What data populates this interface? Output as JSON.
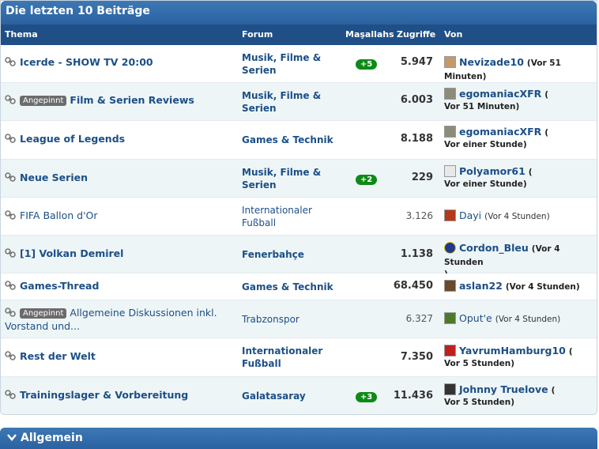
{
  "panel": {
    "title": "Die letzten 10 Beiträge",
    "columns": {
      "thema": "Thema",
      "forum": "Forum",
      "likes": "Maşallahs",
      "views": "Zugriffe",
      "von": "Von"
    }
  },
  "rows": [
    {
      "title": "Icerde - SHOW TV 20:00",
      "pinned": "",
      "forum": "Musik, Filme & Serien",
      "likes": "+5",
      "views": "5.947",
      "user": "Nevizade10",
      "when": "(Vor 51 Minuten)",
      "avatar_color": "#c49a6c"
    },
    {
      "title": "Film & Serien Reviews",
      "pinned": "Angepinnt",
      "forum": "Musik, Filme & Serien",
      "likes": "",
      "views": "6.003",
      "user": "egomaniacXFR",
      "when": "(",
      "when2": "Vor 51 Minuten)",
      "avatar_color": "#8c8c7a"
    },
    {
      "title": "League of Legends",
      "pinned": "",
      "forum": "Games & Technik",
      "likes": "",
      "views": "8.188",
      "user": "egomaniacXFR",
      "when": "(",
      "when2": "Vor einer Stunde)",
      "avatar_color": "#8c8c7a"
    },
    {
      "title": "Neue Serien",
      "pinned": "",
      "forum": "Musik, Filme & Serien",
      "likes": "+2",
      "views": "229",
      "user": "Polyamor61",
      "when": "(",
      "when2": "Vor einer Stunde)",
      "avatar_color": "#e8e8e8"
    },
    {
      "title": "FIFA Ballon d'Or",
      "pinned": "",
      "forum": "Internationaler Fußball",
      "likes": "",
      "views": "3.126",
      "user": "Dayi",
      "when": "(Vor 4 Stunden)",
      "avatar_color": "#b23a1a"
    },
    {
      "title": "[1] Volkan Demirel",
      "pinned": "",
      "forum": "Fenerbahçe",
      "likes": "",
      "views": "1.138",
      "user": "Cordon_Bleu",
      "when": "(Vor 4 Stunden",
      "when2": ")",
      "avatar_color": "#1d3b8a"
    },
    {
      "title": "Games-Thread",
      "pinned": "",
      "forum": "Games & Technik",
      "likes": "",
      "views": "68.450",
      "user": "aslan22",
      "when": "(Vor 4 Stunden)",
      "avatar_color": "#6a4a2a"
    },
    {
      "title": "Allgemeine Diskussionen inkl.",
      "title2": "Vorstand und...",
      "pinned": "Angepinnt",
      "forum": "Trabzonspor",
      "likes": "",
      "views": "6.327",
      "user": "Oput'e",
      "when": "(Vor 4 Stunden)",
      "avatar_color": "#4a7a2a"
    },
    {
      "title": "Rest der Welt",
      "pinned": "",
      "forum": "Internationaler Fußball",
      "likes": "",
      "views": "7.350",
      "user": "YavrumHamburg10",
      "when": "(",
      "when2": "Vor 5 Stunden)",
      "avatar_color": "#c0201a"
    },
    {
      "title": "Trainingslager & Vorbereitung",
      "pinned": "",
      "forum": "Galatasaray",
      "likes": "+3",
      "views": "11.436",
      "user": "Johnny Truelove",
      "when": "(",
      "when2": "Vor 5 Stunden)",
      "avatar_color": "#333333"
    }
  ],
  "section": {
    "title": "Allgemein"
  }
}
